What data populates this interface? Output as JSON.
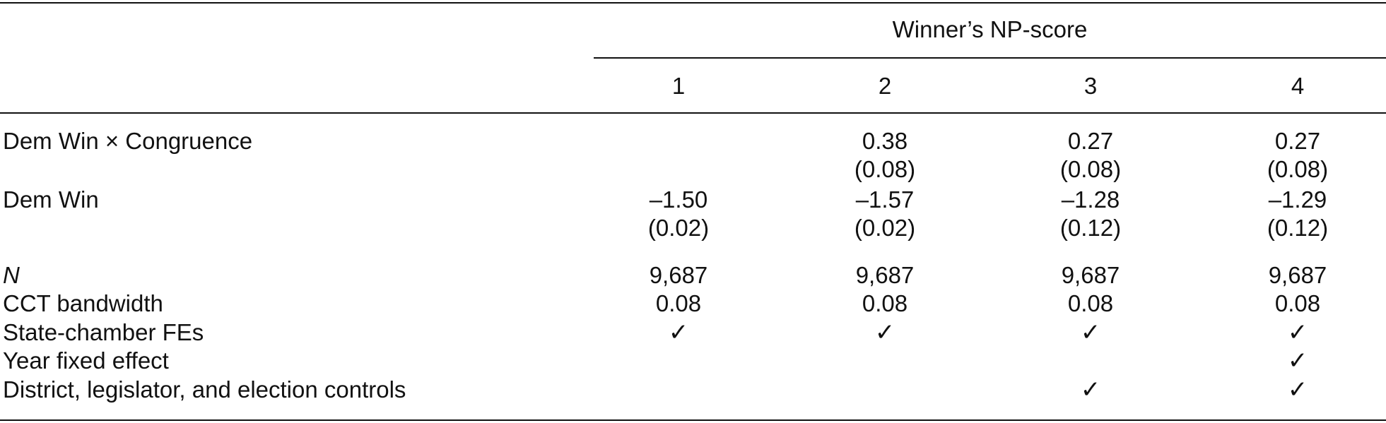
{
  "table": {
    "spanner": "Winner’s NP-score",
    "columns": [
      "1",
      "2",
      "3",
      "4"
    ],
    "coef_rows": [
      {
        "label": "Dem Win × Congruence",
        "estimates": [
          "",
          "0.38",
          "0.27",
          "0.27"
        ],
        "std_errors": [
          "",
          "(0.08)",
          "(0.08)",
          "(0.08)"
        ]
      },
      {
        "label": "Dem Win",
        "estimates": [
          "–1.50",
          "–1.57",
          "–1.28",
          "–1.29"
        ],
        "std_errors": [
          "(0.02)",
          "(0.02)",
          "(0.12)",
          "(0.12)"
        ]
      }
    ],
    "stat_rows": [
      {
        "label": "N",
        "values": [
          "9,687",
          "9,687",
          "9,687",
          "9,687"
        ]
      },
      {
        "label": "CCT bandwidth",
        "values": [
          "0.08",
          "0.08",
          "0.08",
          "0.08"
        ]
      }
    ],
    "check_symbol": "✓",
    "indicator_rows": [
      {
        "label": "State-chamber FEs",
        "checks": [
          true,
          true,
          true,
          true
        ]
      },
      {
        "label": "Year fixed effect",
        "checks": [
          false,
          false,
          false,
          true
        ]
      },
      {
        "label": "District, legislator, and election controls",
        "checks": [
          false,
          false,
          true,
          true
        ]
      }
    ]
  }
}
